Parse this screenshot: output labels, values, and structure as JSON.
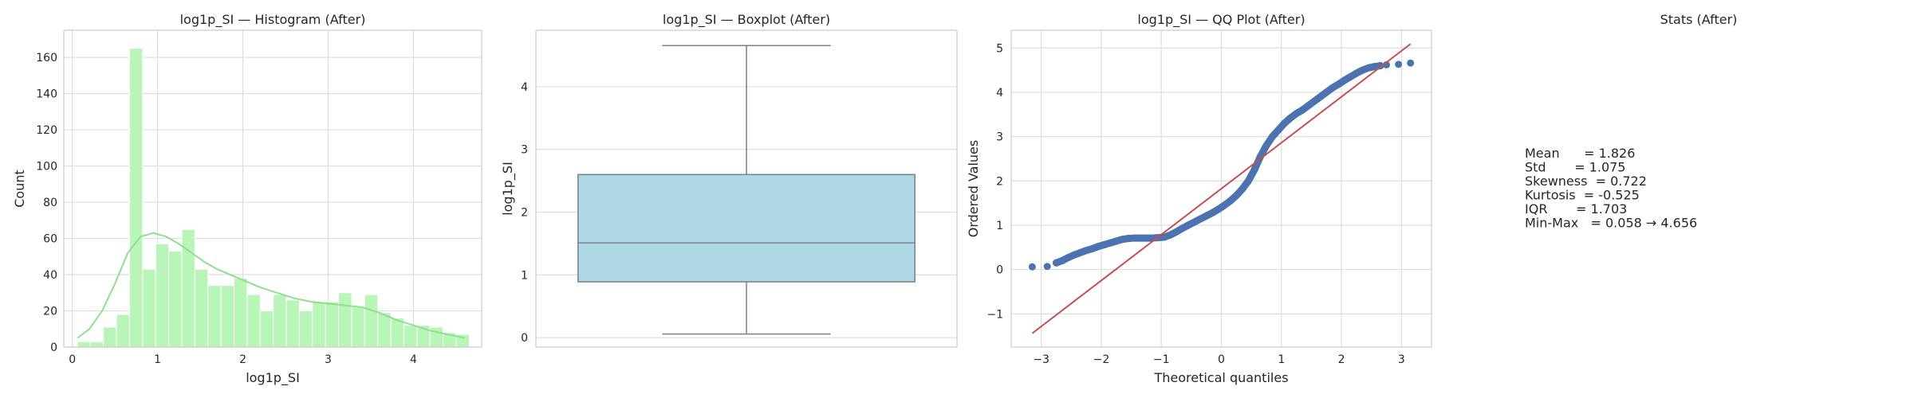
{
  "chart_data": [
    {
      "type": "bar",
      "title": "log1p_SI — Histogram (After)",
      "xlabel": "log1p_SI",
      "ylabel": "Count",
      "xlim": [
        -0.1,
        4.8
      ],
      "ylim": [
        0,
        175
      ],
      "xticks": [
        0,
        1,
        2,
        3,
        4
      ],
      "yticks": [
        0,
        20,
        40,
        60,
        80,
        100,
        120,
        140,
        160
      ],
      "grid": true,
      "bar_color": "#b9f4b9",
      "kde_color": "#8ee08e",
      "bins": {
        "start": 0.058,
        "width": 0.1532,
        "counts": [
          3,
          3,
          11,
          18,
          165,
          43,
          57,
          53,
          65,
          43,
          34,
          34,
          38,
          29,
          20,
          29,
          26,
          20,
          25,
          25,
          30,
          22,
          29,
          19,
          16,
          12,
          12,
          11,
          8,
          7
        ]
      },
      "kde": {
        "x": [
          0.06,
          0.2,
          0.35,
          0.5,
          0.65,
          0.8,
          0.95,
          1.1,
          1.25,
          1.4,
          1.55,
          1.7,
          1.85,
          2.0,
          2.2,
          2.4,
          2.6,
          2.8,
          3.0,
          3.2,
          3.4,
          3.6,
          3.8,
          4.0,
          4.2,
          4.4,
          4.6
        ],
        "y": [
          5,
          10,
          20,
          35,
          52,
          61,
          63,
          61,
          57,
          52,
          47,
          43,
          40,
          37,
          33,
          30,
          27,
          25,
          24,
          23,
          22,
          19,
          15,
          12,
          9,
          7,
          5
        ]
      }
    },
    {
      "type": "box",
      "title": "log1p_SI — Boxplot (After)",
      "ylabel": "log1p_SI",
      "ylim": [
        -0.15,
        4.9
      ],
      "yticks": [
        0,
        1,
        2,
        3,
        4
      ],
      "grid": true,
      "box_color": "#add8e6",
      "whisker_low": 0.058,
      "q1": 0.89,
      "median": 1.51,
      "q3": 2.6,
      "whisker_high": 4.656
    },
    {
      "type": "scatter",
      "title": "log1p_SI — QQ Plot (After)",
      "xlabel": "Theoretical quantiles",
      "ylabel": "Ordered Values",
      "xlim": [
        -3.5,
        3.5
      ],
      "ylim": [
        -1.75,
        5.4
      ],
      "xticks": [
        -3,
        -2,
        -1,
        0,
        1,
        2,
        3
      ],
      "yticks": [
        -1,
        0,
        1,
        2,
        3,
        4,
        5
      ],
      "grid": true,
      "point_color": "#4c72b0",
      "line_color": "#c44e52",
      "fit_line": {
        "x": [
          -3.15,
          3.15
        ],
        "y": [
          -1.44,
          5.09
        ]
      },
      "points": [
        [
          -3.15,
          0.06
        ],
        [
          -2.9,
          0.07
        ],
        [
          -2.75,
          0.15
        ],
        [
          -2.65,
          0.2
        ],
        [
          -2.55,
          0.27
        ],
        [
          -2.45,
          0.33
        ],
        [
          -2.35,
          0.38
        ],
        [
          -2.25,
          0.43
        ],
        [
          -2.15,
          0.47
        ],
        [
          -2.05,
          0.52
        ],
        [
          -1.95,
          0.56
        ],
        [
          -1.85,
          0.6
        ],
        [
          -1.75,
          0.64
        ],
        [
          -1.65,
          0.68
        ],
        [
          -1.55,
          0.7
        ],
        [
          -1.45,
          0.71
        ],
        [
          -1.35,
          0.71
        ],
        [
          -1.25,
          0.71
        ],
        [
          -1.15,
          0.71
        ],
        [
          -1.05,
          0.72
        ],
        [
          -0.95,
          0.73
        ],
        [
          -0.85,
          0.78
        ],
        [
          -0.75,
          0.85
        ],
        [
          -0.65,
          0.93
        ],
        [
          -0.55,
          1.0
        ],
        [
          -0.45,
          1.07
        ],
        [
          -0.35,
          1.14
        ],
        [
          -0.25,
          1.21
        ],
        [
          -0.15,
          1.28
        ],
        [
          -0.05,
          1.36
        ],
        [
          0.05,
          1.45
        ],
        [
          0.15,
          1.55
        ],
        [
          0.25,
          1.67
        ],
        [
          0.35,
          1.82
        ],
        [
          0.45,
          2.0
        ],
        [
          0.55,
          2.25
        ],
        [
          0.65,
          2.55
        ],
        [
          0.75,
          2.8
        ],
        [
          0.85,
          3.0
        ],
        [
          0.95,
          3.15
        ],
        [
          1.05,
          3.3
        ],
        [
          1.15,
          3.42
        ],
        [
          1.25,
          3.52
        ],
        [
          1.35,
          3.6
        ],
        [
          1.45,
          3.7
        ],
        [
          1.55,
          3.8
        ],
        [
          1.65,
          3.9
        ],
        [
          1.75,
          4.0
        ],
        [
          1.85,
          4.1
        ],
        [
          1.95,
          4.18
        ],
        [
          2.05,
          4.27
        ],
        [
          2.15,
          4.35
        ],
        [
          2.25,
          4.43
        ],
        [
          2.35,
          4.5
        ],
        [
          2.45,
          4.55
        ],
        [
          2.55,
          4.58
        ],
        [
          2.65,
          4.6
        ],
        [
          2.75,
          4.62
        ],
        [
          2.95,
          4.63
        ],
        [
          3.15,
          4.66
        ]
      ]
    },
    {
      "type": "table",
      "title": "Stats (After)",
      "lines": [
        "Mean      = 1.826",
        "Std       = 1.075",
        "Skewness  = 0.722",
        "Kurtosis  = -0.525",
        "IQR       = 1.703",
        "Min-Max   = 0.058 → 4.656"
      ]
    }
  ]
}
